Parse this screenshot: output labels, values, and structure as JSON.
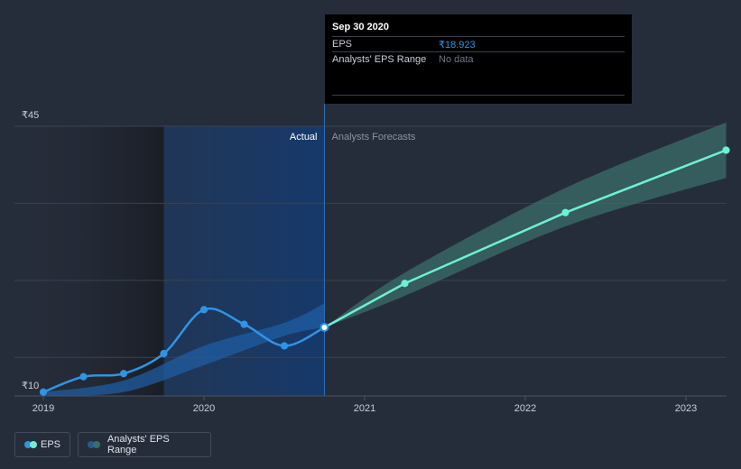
{
  "tooltip": {
    "date": "Sep 30 2020",
    "eps_label": "EPS",
    "eps_value": "₹18.923",
    "range_label": "Analysts' EPS Range",
    "range_value": "No data"
  },
  "regions": {
    "actual": "Actual",
    "forecast": "Analysts Forecasts"
  },
  "legend": {
    "eps": "EPS",
    "range": "Analysts' EPS Range"
  },
  "colors": {
    "background": "#262d3a",
    "eps_line": "#2f94e6",
    "forecast_line": "#6ef0d6",
    "forecast_band": "#3b6e6a",
    "actual_band": "#1f5fa8",
    "eps_value_text": "#2f94e6",
    "no_data_text": "#6f7683"
  },
  "chart_data": {
    "type": "line",
    "ylim": [
      10,
      45
    ],
    "y_ticks": [
      {
        "value": 45,
        "label": "₹45"
      },
      {
        "value": 10,
        "label": "₹10"
      }
    ],
    "x_ticks": [
      {
        "value": 2019.0,
        "label": "2019"
      },
      {
        "value": 2020.0,
        "label": "2020"
      },
      {
        "value": 2021.0,
        "label": "2021"
      },
      {
        "value": 2022.0,
        "label": "2022"
      },
      {
        "value": 2023.0,
        "label": "2023"
      }
    ],
    "grid": true,
    "series": [
      {
        "name": "EPS",
        "x": [
          2019.0,
          2019.25,
          2019.5,
          2019.75,
          2020.0,
          2020.25,
          2020.5,
          2020.75
        ],
        "y": [
          10.5,
          12.5,
          12.9,
          15.5,
          21.2,
          19.3,
          16.5,
          18.9
        ]
      },
      {
        "name": "EPS Forecast",
        "x": [
          2020.75,
          2021.25,
          2022.25,
          2023.25
        ],
        "y": [
          18.9,
          24.6,
          33.8,
          41.9
        ]
      }
    ],
    "actual_band": {
      "x": [
        2019.0,
        2019.5,
        2020.0,
        2020.5,
        2020.75
      ],
      "upper": [
        10.5,
        12.0,
        16.5,
        19.5,
        22.0
      ],
      "lower": [
        10.0,
        10.5,
        14.0,
        17.8,
        18.9
      ]
    },
    "forecast_band": {
      "x": [
        2020.75,
        2021.25,
        2022.25,
        2023.25
      ],
      "upper": [
        18.9,
        26.0,
        37.0,
        45.5
      ],
      "lower": [
        18.9,
        23.0,
        32.0,
        38.3
      ]
    },
    "actual_divider_x": 2020.75,
    "past_shade_until": 2019.75
  }
}
